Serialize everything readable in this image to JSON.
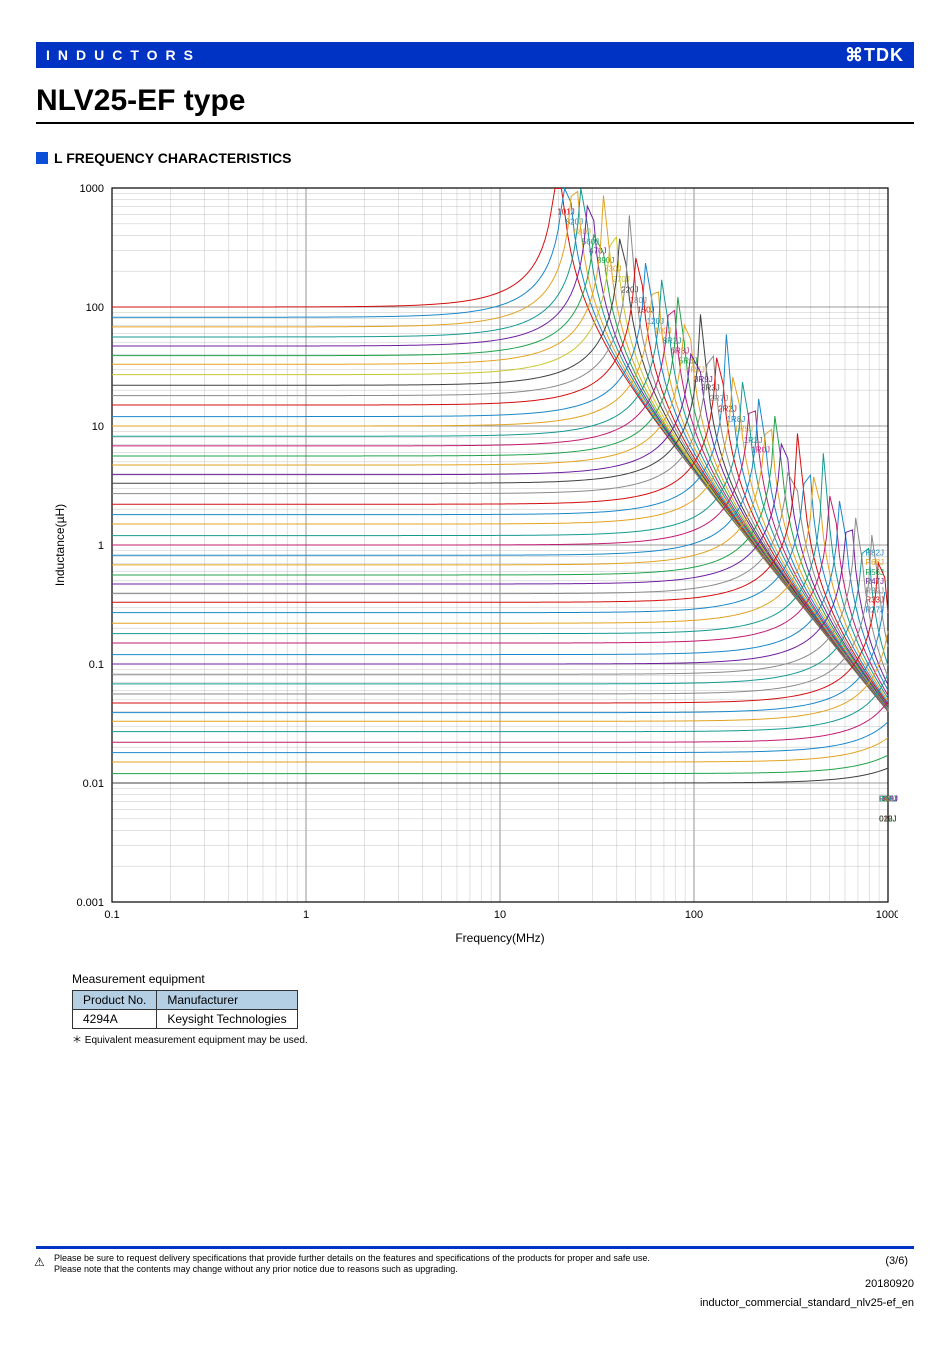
{
  "header": {
    "category": "INDUCTORS",
    "brand": "⌘TDK"
  },
  "product_title": "NLV25-EF type",
  "section_title": "L FREQUENCY CHARACTERISTICS",
  "chart": {
    "type": "line",
    "xlabel": "Frequency(MHz)",
    "ylabel": "Inductance(µH)",
    "x_scale": "log",
    "y_scale": "log",
    "xlim": [
      0.1,
      1000
    ],
    "ylim": [
      0.001,
      1000
    ],
    "x_ticks": [
      "0.1",
      "1",
      "10",
      "100",
      "1000"
    ],
    "y_ticks": [
      "0.001",
      "0.01",
      "0.1",
      "1",
      "10",
      "100",
      "1000"
    ],
    "background_color": "#ffffff",
    "grid_color_major": "#7a7a7a",
    "grid_color_minor": "#b5b5b5",
    "axis_color": "#000000",
    "label_fontsize": 12,
    "tick_fontsize": 11,
    "series_label_fontsize": 8,
    "line_width": 1.0,
    "series": [
      {
        "name": "101J",
        "base": 100,
        "color": "#d40e0e"
      },
      {
        "name": "820J",
        "base": 82,
        "color": "#1a87c9"
      },
      {
        "name": "680J",
        "base": 68,
        "color": "#e3a321"
      },
      {
        "name": "560J",
        "base": 56,
        "color": "#159a93"
      },
      {
        "name": "470J",
        "base": 47,
        "color": "#6f1fa1"
      },
      {
        "name": "390J",
        "base": 39,
        "color": "#1fa34a"
      },
      {
        "name": "330J",
        "base": 33,
        "color": "#e3a321"
      },
      {
        "name": "270J",
        "base": 27,
        "color": "#c7c730"
      },
      {
        "name": "220J",
        "base": 22,
        "color": "#404040"
      },
      {
        "name": "180J",
        "base": 18,
        "color": "#8a8a8a"
      },
      {
        "name": "150J",
        "base": 15,
        "color": "#d40e0e"
      },
      {
        "name": "120J",
        "base": 12,
        "color": "#1a87c9"
      },
      {
        "name": "100J",
        "base": 10,
        "color": "#e3a321"
      },
      {
        "name": "8R2J",
        "base": 8.2,
        "color": "#159a93"
      },
      {
        "name": "6R8J",
        "base": 6.8,
        "color": "#c21b72"
      },
      {
        "name": "5R6J",
        "base": 5.6,
        "color": "#1fa34a"
      },
      {
        "name": "4R7J",
        "base": 4.7,
        "color": "#e3a321"
      },
      {
        "name": "3R9J",
        "base": 3.9,
        "color": "#6f1fa1"
      },
      {
        "name": "3R3J",
        "base": 3.3,
        "color": "#404040"
      },
      {
        "name": "2R7J",
        "base": 2.7,
        "color": "#8a8a8a"
      },
      {
        "name": "2R2J",
        "base": 2.2,
        "color": "#d40e0e"
      },
      {
        "name": "1R8J",
        "base": 1.8,
        "color": "#1a87c9"
      },
      {
        "name": "1R5J",
        "base": 1.5,
        "color": "#e3a321"
      },
      {
        "name": "1R2J",
        "base": 1.2,
        "color": "#159a93"
      },
      {
        "name": "1R0J",
        "base": 1.0,
        "color": "#c21b72"
      },
      {
        "name": "R82J",
        "base": 0.82,
        "color": "#1a87c9"
      },
      {
        "name": "R68J",
        "base": 0.68,
        "color": "#e3a321"
      },
      {
        "name": "R56J",
        "base": 0.56,
        "color": "#1fa34a"
      },
      {
        "name": "R47J",
        "base": 0.47,
        "color": "#6f1fa1"
      },
      {
        "name": "R39J",
        "base": 0.39,
        "color": "#8a8a8a"
      },
      {
        "name": "R33J",
        "base": 0.33,
        "color": "#d40e0e"
      },
      {
        "name": "R27J",
        "base": 0.27,
        "color": "#1a87c9"
      },
      {
        "name": "R22J",
        "base": 0.22,
        "color": "#e3a321"
      },
      {
        "name": "R18J",
        "base": 0.18,
        "color": "#159a93"
      },
      {
        "name": "R15J",
        "base": 0.15,
        "color": "#c21b72"
      },
      {
        "name": "R12J",
        "base": 0.12,
        "color": "#1a87c9"
      },
      {
        "name": "R10J",
        "base": 0.1,
        "color": "#6f1fa1"
      },
      {
        "name": "082J",
        "base": 0.082,
        "color": "#8a8a8a"
      },
      {
        "name": "068J",
        "base": 0.068,
        "color": "#159a93"
      },
      {
        "name": "056J",
        "base": 0.056,
        "color": "#8a8a8a"
      },
      {
        "name": "047J",
        "base": 0.047,
        "color": "#d40e0e"
      },
      {
        "name": "039J",
        "base": 0.039,
        "color": "#1a87c9"
      },
      {
        "name": "033J",
        "base": 0.033,
        "color": "#e3a321"
      },
      {
        "name": "027J",
        "base": 0.027,
        "color": "#159a93"
      },
      {
        "name": "022J",
        "base": 0.022,
        "color": "#c21b72"
      },
      {
        "name": "018J",
        "base": 0.018,
        "color": "#1a87c9"
      },
      {
        "name": "015J",
        "base": 0.015,
        "color": "#e3a321"
      },
      {
        "name": "012J",
        "base": 0.012,
        "color": "#1fa34a"
      },
      {
        "name": "010J",
        "base": 0.01,
        "color": "#404040"
      }
    ],
    "srf_reference_uH_MHz": 200
  },
  "measurement": {
    "heading": "Measurement equipment",
    "columns": [
      "Product No.",
      "Manufacturer"
    ],
    "rows": [
      [
        "4294A",
        "Keysight Technologies"
      ]
    ],
    "footnote": "＊ Equivalent measurement equipment may be used."
  },
  "footer": {
    "disclaimer1": "Please be sure to request delivery specifications that provide further details on the features and specifications of the products for proper and safe use.",
    "disclaimer2": "Please note that the contents may change without any prior notice due to reasons such as upgrading.",
    "page": "(3/6)",
    "date": "20180920",
    "filename": "inductor_commercial_standard_nlv25-ef_en"
  }
}
